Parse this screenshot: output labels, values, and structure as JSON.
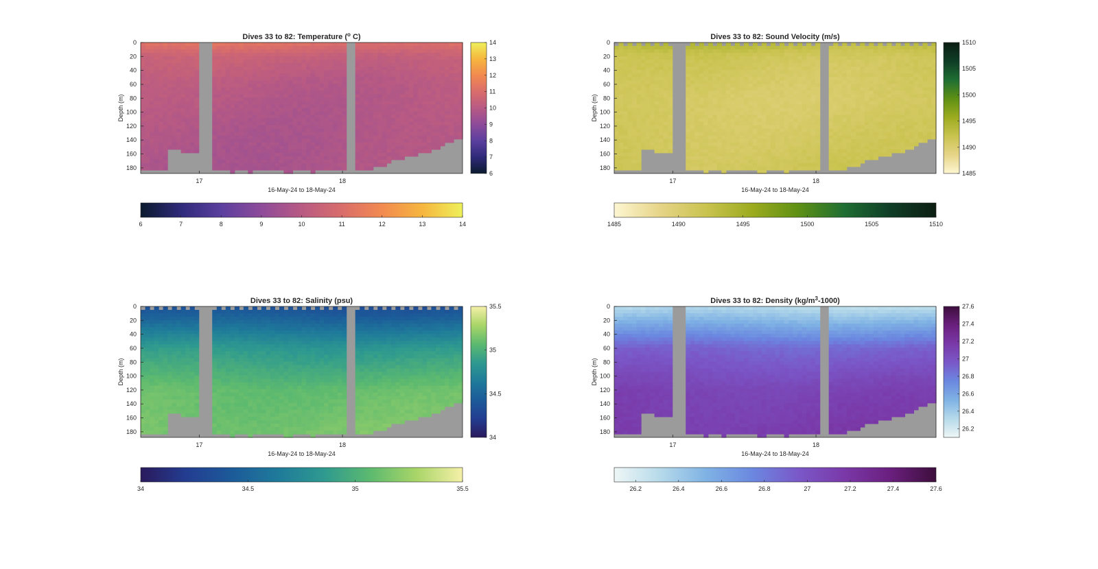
{
  "chart_data": [
    {
      "type": "heatmap",
      "title": "Dives 33 to 82: Temperature (",
      "title_sup": "o",
      "title_tail": " C)",
      "xlabel": "16-May-24 to 18-May-24",
      "ylabel": "Depth (m)",
      "xticks": [
        "17",
        "18"
      ],
      "yticks": [
        "0",
        "20",
        "40",
        "60",
        "80",
        "100",
        "120",
        "140",
        "160",
        "180"
      ],
      "ylim": [
        0,
        188
      ],
      "colorbar_ticks": [
        "6",
        "7",
        "8",
        "9",
        "10",
        "11",
        "12",
        "13",
        "14"
      ],
      "clim": [
        6,
        14
      ],
      "colormap": [
        "#0b1a2e",
        "#2f2a7a",
        "#5b3f9e",
        "#8e4b9a",
        "#b85a83",
        "#d96d6b",
        "#f28a4f",
        "#f6b63f",
        "#eef05a"
      ],
      "profile_values": [
        {
          "depth": 0,
          "value": 11.2
        },
        {
          "depth": 20,
          "value": 10.4
        },
        {
          "depth": 60,
          "value": 10.0
        },
        {
          "depth": 120,
          "value": 9.8
        },
        {
          "depth": 180,
          "value": 9.7
        }
      ]
    },
    {
      "type": "heatmap",
      "title": "Dives 33 to 82: Sound Velocity (m/s)",
      "title_sup": "",
      "title_tail": "",
      "xlabel": "16-May-24 to 18-May-24",
      "ylabel": "Depth (m)",
      "xticks": [
        "17",
        "18"
      ],
      "yticks": [
        "0",
        "20",
        "40",
        "60",
        "80",
        "100",
        "120",
        "140",
        "160",
        "180"
      ],
      "ylim": [
        0,
        188
      ],
      "colorbar_ticks": [
        "1485",
        "1490",
        "1495",
        "1500",
        "1505",
        "1510"
      ],
      "colorbar_ticks_right": [
        "1510",
        "1505",
        "1500",
        "1495",
        "1490",
        "1485"
      ],
      "clim": [
        1485,
        1510
      ],
      "colormap": [
        "#fdf6d2",
        "#e6d487",
        "#c9c34f",
        "#9cab1f",
        "#5e9014",
        "#1f6e33",
        "#0f3d26",
        "#0c1e12"
      ],
      "profile_values": [
        {
          "depth": 0,
          "value": 1493.5
        },
        {
          "depth": 20,
          "value": 1491.5
        },
        {
          "depth": 80,
          "value": 1490.6
        },
        {
          "depth": 180,
          "value": 1491.5
        }
      ]
    },
    {
      "type": "heatmap",
      "title": "Dives 33 to 82: Salinity (psu)",
      "title_sup": "",
      "title_tail": "",
      "xlabel": "16-May-24 to 18-May-24",
      "ylabel": "Depth (m)",
      "xticks": [
        "17",
        "18"
      ],
      "yticks": [
        "0",
        "20",
        "40",
        "60",
        "80",
        "100",
        "120",
        "140",
        "160",
        "180"
      ],
      "ylim": [
        0,
        188
      ],
      "colorbar_ticks": [
        "34",
        "34.5",
        "35",
        "35.5"
      ],
      "colorbar_ticks_right": [
        "35.5",
        "35",
        "34.5",
        "34"
      ],
      "clim": [
        34,
        35.5
      ],
      "colormap": [
        "#2a1a5c",
        "#233d91",
        "#1c5b99",
        "#1f7b9a",
        "#2f9a8f",
        "#5dba6f",
        "#a9d568",
        "#f5f0a8"
      ],
      "profile_values": [
        {
          "depth": 0,
          "value": 34.35
        },
        {
          "depth": 20,
          "value": 34.5
        },
        {
          "depth": 60,
          "value": 34.85
        },
        {
          "depth": 120,
          "value": 35.1
        },
        {
          "depth": 180,
          "value": 35.15
        }
      ]
    },
    {
      "type": "heatmap",
      "title": "Dives 33 to 82: Density (kg/m",
      "title_sup": "3",
      "title_tail": "-1000)",
      "xlabel": "16-May-24 to 18-May-24",
      "ylabel": "Depth (m)",
      "xticks": [
        "17",
        "18"
      ],
      "yticks": [
        "0",
        "20",
        "40",
        "60",
        "80",
        "100",
        "120",
        "140",
        "160",
        "180"
      ],
      "ylim": [
        0,
        188
      ],
      "colorbar_ticks": [
        "26.2",
        "26.4",
        "26.6",
        "26.8",
        "27",
        "27.2",
        "27.4",
        "27.6"
      ],
      "colorbar_ticks_right": [
        "27.6",
        "27.4",
        "27.2",
        "27",
        "26.8",
        "26.6",
        "26.4",
        "26.2"
      ],
      "clim": [
        26.1,
        27.6
      ],
      "colormap": [
        "#eef6f6",
        "#b6daea",
        "#7fb2e4",
        "#6b88e0",
        "#7a58c8",
        "#7a39a8",
        "#6a1f7e",
        "#3d0e3c"
      ],
      "profile_values": [
        {
          "depth": 0,
          "value": 26.3
        },
        {
          "depth": 20,
          "value": 26.5
        },
        {
          "depth": 60,
          "value": 26.9
        },
        {
          "depth": 120,
          "value": 27.1
        },
        {
          "depth": 180,
          "value": 27.15
        }
      ]
    }
  ],
  "colors": {
    "nodata": "#9b9b9b",
    "frame": "#262626",
    "background": "#ffffff"
  }
}
